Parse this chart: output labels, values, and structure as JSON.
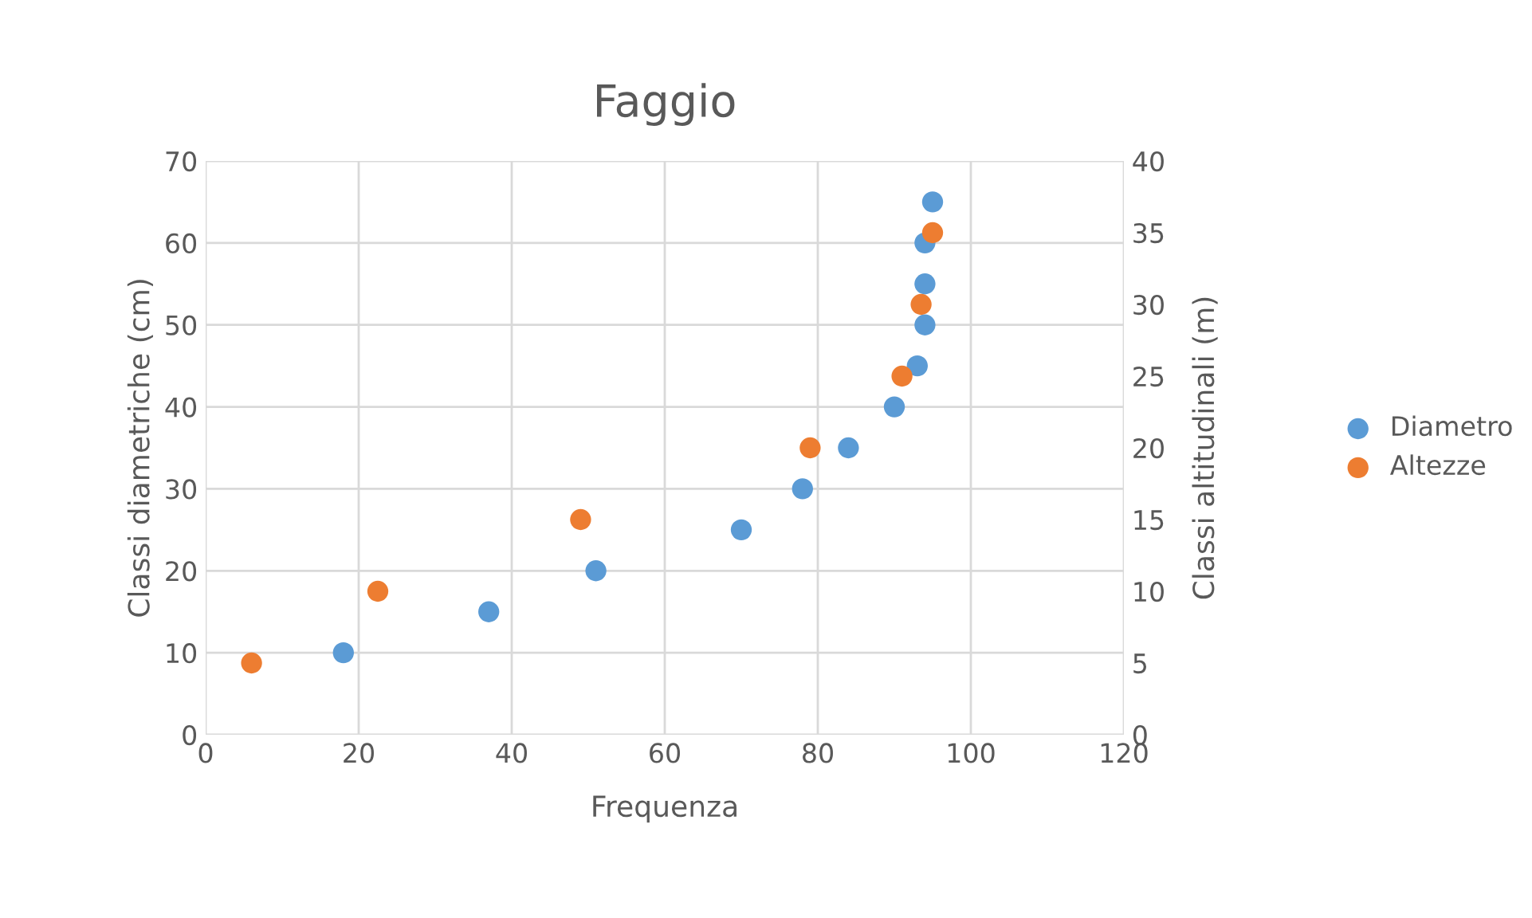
{
  "chart_data": {
    "type": "scatter",
    "title": "Faggio",
    "xlabel": "Frequenza",
    "ylabel": "Classi diametriche (cm)",
    "y2label": "Classi altitudinali (m)",
    "xlim": [
      0,
      120
    ],
    "xticks": [
      0,
      20,
      40,
      60,
      80,
      100,
      120
    ],
    "ylim": [
      0,
      70
    ],
    "yticks": [
      0,
      10,
      20,
      30,
      40,
      50,
      60,
      70
    ],
    "y2lim": [
      0,
      40
    ],
    "y2ticks": [
      0,
      5,
      10,
      15,
      20,
      25,
      30,
      35,
      40
    ],
    "grid": true,
    "legend": "right",
    "marker": "circle",
    "series": [
      {
        "name": "Diametro",
        "color": "#5b9bd5",
        "x": [
          18,
          37,
          51,
          70,
          78,
          84,
          90,
          93,
          94,
          94,
          94,
          95
        ],
        "values": [
          10,
          15,
          20,
          25,
          30,
          35,
          40,
          45,
          50,
          55,
          60,
          65
        ]
      },
      {
        "name": "Altezze",
        "color": "#ed7d31",
        "axis": "y2",
        "x": [
          6,
          22.5,
          49,
          79,
          91,
          93.5,
          95
        ],
        "values": [
          5,
          10,
          15,
          20,
          25,
          30,
          35
        ]
      }
    ]
  }
}
